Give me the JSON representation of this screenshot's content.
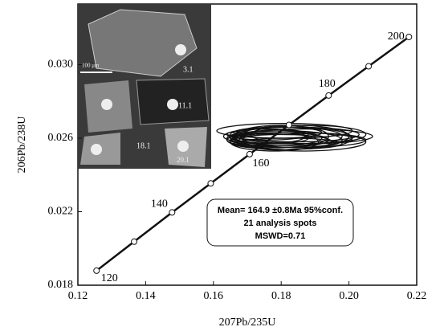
{
  "chart_data": {
    "type": "concordia",
    "xlabel": "207Pb/235U",
    "ylabel": "206Pb/238U",
    "xlim": [
      0.12,
      0.22
    ],
    "xticks": [
      0.12,
      0.14,
      0.16,
      0.18,
      {
        "value": 0.2,
        "label": "0.20"
      },
      0.22
    ],
    "ylim": [
      0.018,
      0.0333
    ],
    "yticks": [
      0.018,
      0.022,
      0.026,
      {
        "value": 0.03,
        "label": "0.030"
      }
    ],
    "concordia": {
      "color": "#111111",
      "x": [
        0.1255,
        0.1366,
        0.1478,
        0.1592,
        0.1707,
        0.1823,
        0.194,
        0.2058,
        0.2177
      ],
      "y": [
        0.01879,
        0.02037,
        0.02196,
        0.02354,
        0.02513,
        0.02672,
        0.02832,
        0.02991,
        0.03151
      ],
      "age_labels": [
        120,
        null,
        140,
        null,
        160,
        null,
        180,
        null,
        200
      ]
    },
    "ellipses": {
      "color": "#111111",
      "x": [
        0.178,
        0.182,
        0.185,
        0.176,
        0.18,
        0.183,
        0.187,
        0.179,
        0.181,
        0.184,
        0.177,
        0.186,
        0.18,
        0.182,
        0.175,
        0.188,
        0.179,
        0.183,
        0.181,
        0.178,
        0.184
      ],
      "y": [
        0.026,
        0.0261,
        0.0259,
        0.0262,
        0.0258,
        0.026,
        0.0261,
        0.0263,
        0.0259,
        0.0262,
        0.026,
        0.0258,
        0.0261,
        0.0257,
        0.0261,
        0.0262,
        0.0259,
        0.026,
        0.0264,
        0.0258,
        0.0261
      ],
      "xerr": [
        0.014,
        0.016,
        0.02,
        0.012,
        0.015,
        0.018,
        0.02,
        0.013,
        0.017,
        0.019,
        0.011,
        0.019,
        0.014,
        0.016,
        0.012,
        0.017,
        0.015,
        0.018,
        0.02,
        0.013,
        0.016
      ],
      "yerr": [
        0.0004,
        0.0005,
        0.0004,
        0.0003,
        0.0004,
        0.0006,
        0.0004,
        0.0003,
        0.0005,
        0.0004,
        0.0003,
        0.0005,
        0.0006,
        0.0003,
        0.0004,
        0.0005,
        0.0004,
        0.0003,
        0.0004,
        0.0005,
        0.0006
      ]
    },
    "annotation": [
      "Mean= 164.9 ±0.8Ma 95%conf.",
      "21 analysis spots",
      "MSWD=0.71"
    ],
    "inset": {
      "labels": [
        "3.1",
        "11.1",
        "18.1",
        "20.1"
      ],
      "scale": "100 μm"
    }
  }
}
